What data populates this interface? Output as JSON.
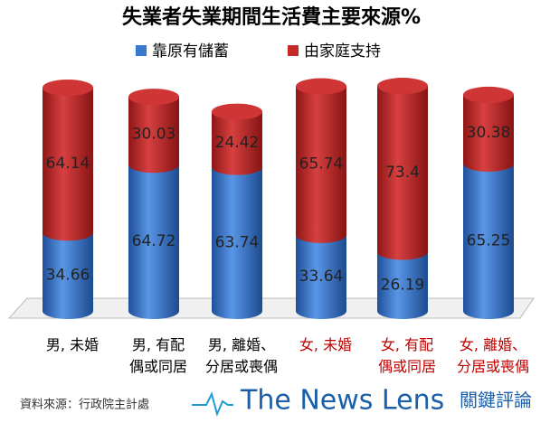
{
  "chart_data": {
    "type": "stacked-cylinder",
    "title": "失業者失業期間生活費主要來源%",
    "categories": [
      "男, 未婚",
      "男, 有配\n偶或同居",
      "男, 離婚、\n分居或喪偶",
      "女, 未婚",
      "女, 有配\n偶或同居",
      "女, 離婚、\n分居或喪偶"
    ],
    "category_label_colors": [
      "#000000",
      "#000000",
      "#000000",
      "#c00000",
      "#c00000",
      "#c00000"
    ],
    "series": [
      {
        "name": "靠原有儲蓄",
        "color": "#3a78d0",
        "values": [
          34.66,
          64.72,
          63.74,
          33.64,
          26.19,
          65.25
        ]
      },
      {
        "name": "由家庭支持",
        "color": "#c62b2b",
        "values": [
          64.14,
          30.03,
          24.42,
          65.74,
          73.4,
          30.38
        ]
      }
    ],
    "source": "資料來源：行政院主計處",
    "brand": {
      "name": "The News Lens",
      "subname": "關鍵評論"
    }
  }
}
